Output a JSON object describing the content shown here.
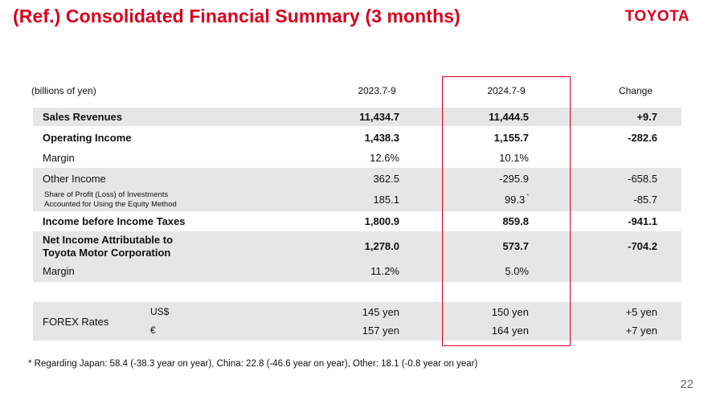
{
  "header": {
    "title": "(Ref.) Consolidated Financial Summary (3 months)",
    "logo": "TOYOTA"
  },
  "table": {
    "unit_label": "(billions of yen)",
    "col_prev": "2023.7-9",
    "col_curr": "2024.7-9",
    "col_change": "Change",
    "rows": [
      {
        "label": "Sales Revenues",
        "prev": "11,434.7",
        "curr": "11,444.5",
        "change": "+9.7"
      },
      {
        "label": "Operating Income",
        "prev": "1,438.3",
        "curr": "1,155.7",
        "change": "-282.6"
      },
      {
        "label": "Margin",
        "prev": "12.6%",
        "curr": "10.1%",
        "change": ""
      },
      {
        "label": "Other Income",
        "prev": "362.5",
        "curr": "-295.9",
        "change": "-658.5"
      },
      {
        "label_line1": "Share of Profit (Loss) of Investments",
        "label_line2": "Accounted for Using the Equity Method",
        "prev": "185.1",
        "curr": "99.3",
        "curr_note": "*",
        "change": "-85.7"
      },
      {
        "label": "Income before Income Taxes",
        "prev": "1,800.9",
        "curr": "859.8",
        "change": "-941.1"
      },
      {
        "label_line1": "Net Income Attributable to",
        "label_line2": "Toyota Motor Corporation",
        "prev": "1,278.0",
        "curr": "573.7",
        "change": "-704.2"
      },
      {
        "label": "Margin",
        "prev": "11.2%",
        "curr": "5.0%",
        "change": ""
      }
    ],
    "forex": {
      "label": "FOREX Rates",
      "usd": {
        "currency": "US$",
        "prev": "145 yen",
        "curr": "150 yen",
        "change": "+5 yen"
      },
      "eur": {
        "currency": "€",
        "prev": "157 yen",
        "curr": "164 yen",
        "change": "+7 yen"
      }
    }
  },
  "footnote": "* Regarding Japan: 58.4 (-38.3 year on year), China: 22.8 (-46.6 year on year), Other: 18.1 (-0.8 year on year)",
  "page_number": "22",
  "colors": {
    "brand_red": "#d6001c",
    "row_shade": "#e6e6e6"
  }
}
